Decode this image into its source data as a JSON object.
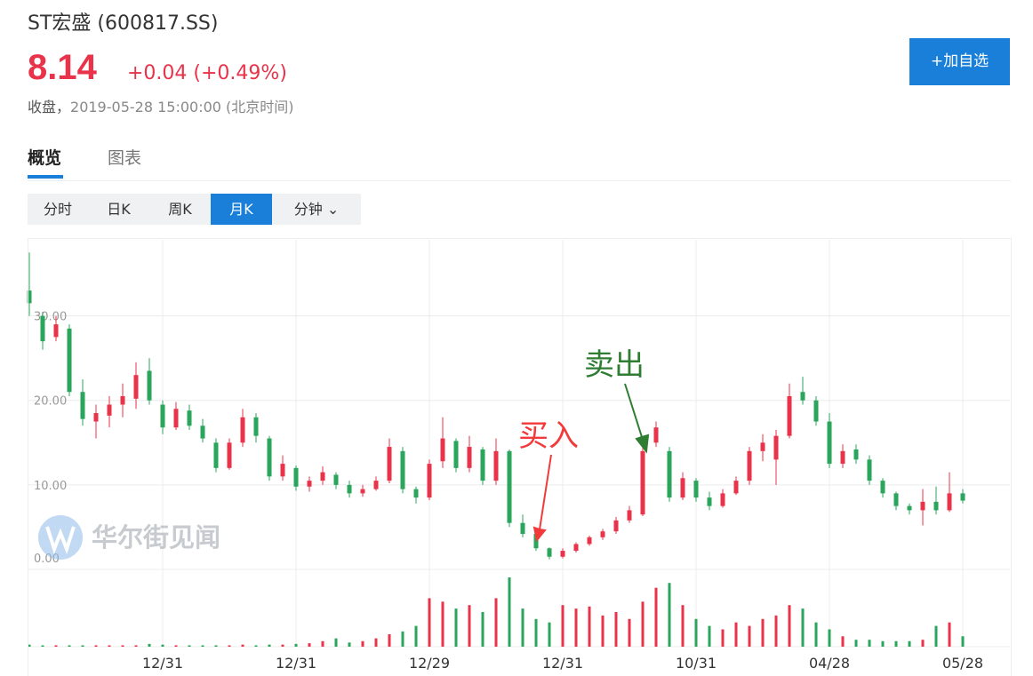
{
  "header": {
    "title": "ST宏盛 (600817.SS)",
    "price": "8.14",
    "change": "+0.04 (+0.49%)",
    "status": "收盘，",
    "time": "2019-05-28 15:00:00 (北京时间)",
    "button": "+加自选"
  },
  "tabs": [
    "概览",
    "图表"
  ],
  "periods": [
    "分时",
    "日K",
    "周K",
    "月K",
    "分钟 ⌄"
  ],
  "active_period": 3,
  "chart_data": {
    "type": "candlestick",
    "watermark": "华尔街见闻",
    "up_color": "#e8334a",
    "down_color": "#2aa55c",
    "categories": [
      null,
      null,
      null,
      null,
      null,
      null,
      null,
      null,
      null,
      null,
      "12/31",
      null,
      null,
      null,
      null,
      null,
      null,
      null,
      null,
      null,
      "12/31",
      null,
      null,
      null,
      null,
      null,
      null,
      null,
      null,
      null,
      "12/29",
      null,
      null,
      null,
      null,
      null,
      null,
      null,
      null,
      null,
      "12/31",
      null,
      null,
      null,
      null,
      null,
      null,
      null,
      null,
      null,
      "10/31",
      null,
      null,
      null,
      null,
      null,
      null,
      null,
      null,
      null,
      "04/28",
      null,
      null,
      null,
      null,
      null,
      null,
      null,
      null,
      null,
      "05/28"
    ],
    "open": [
      33.0,
      30.0,
      27.5,
      28.5,
      21.0,
      17.5,
      18.2,
      19.5,
      20.2,
      23.5,
      19.5,
      16.8,
      18.8,
      17.0,
      15.0,
      12.0,
      15.0,
      18.0,
      15.5,
      11.0,
      12.0,
      9.8,
      10.5,
      11.2,
      10.0,
      9.0,
      9.5,
      10.5,
      14.0,
      9.5,
      8.5,
      12.8,
      15.2,
      12.0,
      14.2,
      10.5,
      14.0,
      5.5,
      4.2,
      2.5,
      1.5,
      2.2,
      3.0,
      3.8,
      4.5,
      5.8,
      6.5,
      15.0,
      14.0,
      8.5,
      10.5,
      8.5,
      7.5,
      9.0,
      10.5,
      14.0,
      13.0,
      15.8,
      21.0,
      20.0,
      17.5,
      12.5,
      14.2,
      13.0,
      10.5,
      9.0,
      7.5,
      7.0,
      8.0,
      7.0,
      9.0
    ],
    "high": [
      37.5,
      30.5,
      30.0,
      29.0,
      22.5,
      19.5,
      20.5,
      22.0,
      24.5,
      25.0,
      20.0,
      19.8,
      19.5,
      17.8,
      15.5,
      15.5,
      19.0,
      18.5,
      15.8,
      13.5,
      12.3,
      11.0,
      12.2,
      11.5,
      10.5,
      10.0,
      11.0,
      15.5,
      14.5,
      9.8,
      13.0,
      18.0,
      15.5,
      15.8,
      14.5,
      15.5,
      14.2,
      6.5,
      4.5,
      2.6,
      2.5,
      3.2,
      4.0,
      4.8,
      6.2,
      7.5,
      14.8,
      17.5,
      14.5,
      11.5,
      10.8,
      9.2,
      9.5,
      11.0,
      14.5,
      16.0,
      16.5,
      22.0,
      22.8,
      20.5,
      18.5,
      14.8,
      14.8,
      13.5,
      10.8,
      9.2,
      7.8,
      9.5,
      9.8,
      11.5,
      9.5
    ],
    "low": [
      30.0,
      26.0,
      27.0,
      20.5,
      17.0,
      15.5,
      16.8,
      18.0,
      19.0,
      19.5,
      16.0,
      16.5,
      16.5,
      15.0,
      11.5,
      11.8,
      14.5,
      15.0,
      10.5,
      10.5,
      9.3,
      9.2,
      10.0,
      9.5,
      8.5,
      8.6,
      9.3,
      10.2,
      9.0,
      7.8,
      8.2,
      12.0,
      11.5,
      11.5,
      10.0,
      10.0,
      5.0,
      3.8,
      2.2,
      1.2,
      1.3,
      2.0,
      2.8,
      3.5,
      4.2,
      5.5,
      6.3,
      14.5,
      8.0,
      8.2,
      8.0,
      7.0,
      7.3,
      8.8,
      10.0,
      12.8,
      10.0,
      15.5,
      19.5,
      17.0,
      12.0,
      12.0,
      12.5,
      10.0,
      8.5,
      7.0,
      6.5,
      5.2,
      6.5,
      6.8,
      7.8
    ],
    "close": [
      31.5,
      27.0,
      29.0,
      21.0,
      17.8,
      18.5,
      19.5,
      20.5,
      23.0,
      20.0,
      16.8,
      19.0,
      17.0,
      15.5,
      12.0,
      15.0,
      18.0,
      15.8,
      11.0,
      12.5,
      9.8,
      10.5,
      11.5,
      10.0,
      9.0,
      9.5,
      10.5,
      14.5,
      9.5,
      8.5,
      12.5,
      15.5,
      12.0,
      14.5,
      10.5,
      14.0,
      5.5,
      4.2,
      2.5,
      1.5,
      2.2,
      3.0,
      3.8,
      4.5,
      5.8,
      7.0,
      14.0,
      16.8,
      8.5,
      10.8,
      8.5,
      7.5,
      9.0,
      10.5,
      14.0,
      15.0,
      15.8,
      20.5,
      20.0,
      17.5,
      12.5,
      14.0,
      13.0,
      10.5,
      9.0,
      7.5,
      7.0,
      8.0,
      7.0,
      9.0,
      8.14
    ],
    "volume": [
      3,
      2,
      2,
      2,
      2,
      2,
      2,
      2,
      2,
      4,
      3,
      2,
      2,
      2,
      2,
      2,
      3,
      2,
      3,
      3,
      4,
      5,
      8,
      12,
      6,
      8,
      12,
      18,
      22,
      30,
      70,
      65,
      55,
      60,
      50,
      70,
      100,
      55,
      40,
      35,
      60,
      55,
      58,
      45,
      50,
      40,
      65,
      85,
      92,
      60,
      40,
      30,
      25,
      35,
      30,
      40,
      45,
      60,
      55,
      35,
      25,
      15,
      10,
      10,
      8,
      8,
      8,
      10,
      30,
      35,
      15
    ],
    "ylim": [
      0,
      39
    ],
    "volume_lim": [
      0,
      100
    ],
    "yticks": [
      {
        "value": 0,
        "label": "0.00"
      },
      {
        "value": 10,
        "label": "10.00"
      },
      {
        "value": 20,
        "label": "20.00"
      },
      {
        "value": 30,
        "label": "30.00"
      }
    ],
    "grid": true,
    "annotations": [
      {
        "text": "买入",
        "color": "#f23a3a"
      },
      {
        "text": "卖出",
        "color": "#2e7d32"
      }
    ]
  }
}
